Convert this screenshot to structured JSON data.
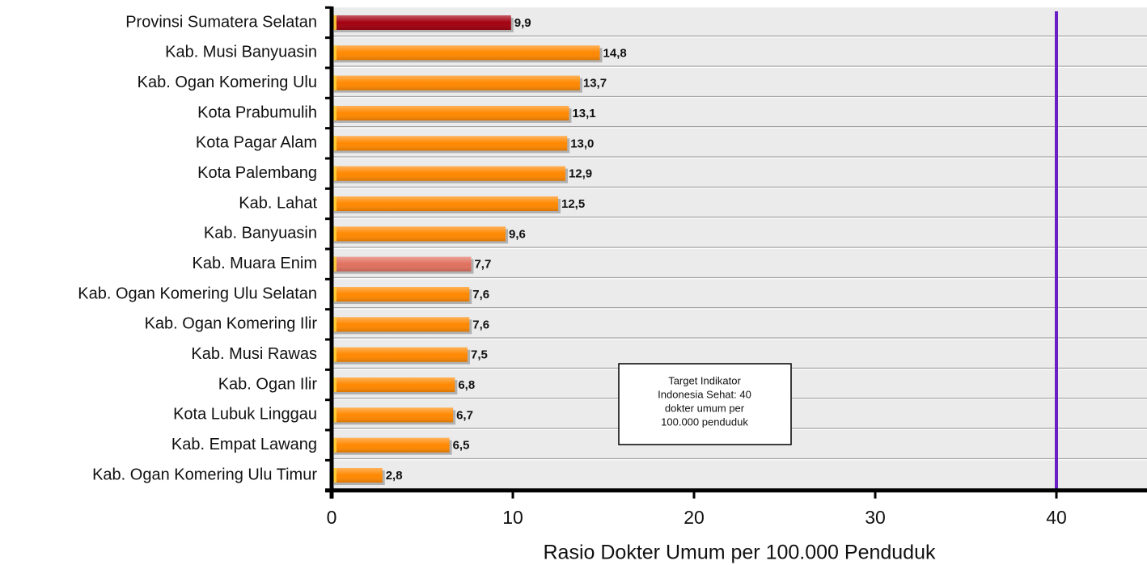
{
  "chart_data": {
    "type": "bar",
    "orientation": "horizontal",
    "categories": [
      "Provinsi Sumatera Selatan",
      "Kab. Musi Banyuasin",
      "Kab. Ogan Komering Ulu",
      "Kota Prabumulih",
      "Kota Pagar Alam",
      "Kota Palembang",
      "Kab. Lahat",
      "Kab. Banyuasin",
      "Kab. Muara Enim",
      "Kab. Ogan Komering Ulu Selatan",
      "Kab. Ogan Komering Ilir",
      "Kab. Musi Rawas",
      "Kab. Ogan Ilir",
      "Kota Lubuk Linggau",
      "Kab. Empat Lawang",
      "Kab. Ogan Komering Ulu Timur"
    ],
    "values": [
      9.9,
      14.8,
      13.7,
      13.1,
      13.0,
      12.9,
      12.5,
      9.6,
      7.7,
      7.6,
      7.6,
      7.5,
      6.8,
      6.7,
      6.5,
      2.8
    ],
    "value_labels": [
      "9,9",
      "14,8",
      "13,7",
      "13,1",
      "13,0",
      "12,9",
      "12,5",
      "9,6",
      "7,7",
      "7,6",
      "7,6",
      "7,5",
      "6,8",
      "6,7",
      "6,5",
      "2,8"
    ],
    "colors": [
      "#a3000f",
      "#ff8800",
      "#ff8800",
      "#ff8800",
      "#ff8800",
      "#ff8800",
      "#ff8800",
      "#ff8800",
      "#e0705e",
      "#ff8800",
      "#ff8800",
      "#ff8800",
      "#ff8800",
      "#ff8800",
      "#ff8800",
      "#ff8800"
    ],
    "xlim": [
      0,
      45
    ],
    "xticks": [
      0,
      10,
      20,
      30,
      40
    ],
    "xlabel": "Rasio Dokter Umum per 100.000 Penduduk",
    "target_line": {
      "value": 40,
      "color": "#6a1fc4"
    },
    "annotation": [
      "Target Indikator",
      "Indonesia  Sehat: 40",
      "dokter umum per",
      "100.000 penduduk"
    ]
  }
}
